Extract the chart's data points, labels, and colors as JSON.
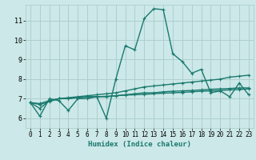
{
  "xlabel": "Humidex (Indice chaleur)",
  "bg_color": "#cce8e8",
  "grid_color": "#aacccc",
  "line_color": "#1a7a6e",
  "xlim": [
    -0.5,
    23.5
  ],
  "ylim": [
    5.5,
    11.8
  ],
  "yticks": [
    6,
    7,
    8,
    9,
    10,
    11
  ],
  "xticks": [
    0,
    1,
    2,
    3,
    4,
    5,
    6,
    7,
    8,
    9,
    10,
    11,
    12,
    13,
    14,
    15,
    16,
    17,
    18,
    19,
    20,
    21,
    22,
    23
  ],
  "series": [
    [
      6.8,
      6.1,
      7.0,
      6.9,
      6.4,
      7.0,
      7.0,
      7.1,
      6.0,
      8.0,
      9.7,
      9.5,
      11.1,
      11.6,
      11.55,
      9.3,
      8.9,
      8.3,
      8.5,
      7.3,
      7.4,
      7.1,
      7.8,
      7.2
    ],
    [
      6.8,
      6.75,
      6.9,
      7.0,
      7.02,
      7.05,
      7.08,
      7.1,
      7.12,
      7.15,
      7.18,
      7.2,
      7.22,
      7.25,
      7.28,
      7.3,
      7.32,
      7.35,
      7.38,
      7.4,
      7.42,
      7.45,
      7.47,
      7.5
    ],
    [
      6.8,
      6.7,
      6.85,
      7.0,
      7.0,
      7.05,
      7.1,
      7.1,
      7.1,
      7.15,
      7.2,
      7.25,
      7.3,
      7.3,
      7.35,
      7.38,
      7.4,
      7.42,
      7.45,
      7.48,
      7.5,
      7.52,
      7.55,
      7.55
    ],
    [
      6.8,
      6.5,
      6.9,
      7.0,
      7.05,
      7.1,
      7.15,
      7.2,
      7.25,
      7.3,
      7.4,
      7.5,
      7.6,
      7.65,
      7.7,
      7.75,
      7.8,
      7.85,
      7.9,
      7.95,
      8.0,
      8.1,
      8.15,
      8.2
    ]
  ]
}
